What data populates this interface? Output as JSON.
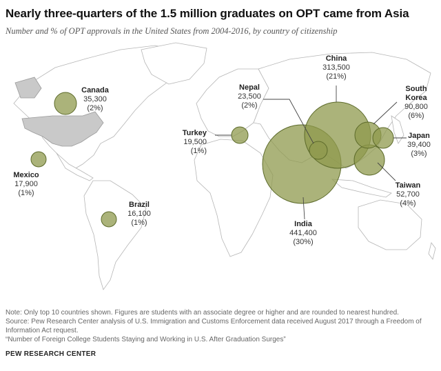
{
  "title": "Nearly three-quarters of the 1.5 million graduates on OPT came from Asia",
  "subtitle": "Number and % of OPT approvals in the United States from 2004-2016, by country of citizenship",
  "colors": {
    "bubble_fill": "#8f9a4e",
    "bubble_stroke": "#5c6a2a",
    "land": "#ffffff",
    "land_stroke": "#b5b5b5",
    "us_fill": "#c9c9c9"
  },
  "countries": [
    {
      "name": "Canada",
      "value": "35,300",
      "pct": "(2%)"
    },
    {
      "name": "Mexico",
      "value": "17,900",
      "pct": "(1%)"
    },
    {
      "name": "Brazil",
      "value": "16,100",
      "pct": "(1%)"
    },
    {
      "name": "Turkey",
      "value": "19,500",
      "pct": "(1%)"
    },
    {
      "name": "Nepal",
      "value": "23,500",
      "pct": "(2%)"
    },
    {
      "name": "China",
      "value": "313,500",
      "pct": "(21%)"
    },
    {
      "name": "South Korea",
      "name_line1": "South",
      "name_line2": "Korea",
      "value": "90,800",
      "pct": "(6%)"
    },
    {
      "name": "Japan",
      "value": "39,400",
      "pct": "(3%)"
    },
    {
      "name": "Taiwan",
      "value": "52,700",
      "pct": "(4%)"
    },
    {
      "name": "India",
      "value": "441,400",
      "pct": "(30%)"
    }
  ],
  "notes": {
    "note": "Note: Only top 10 countries shown. Figures are students with an associate degree or higher and are rounded to nearest hundred.",
    "source": "Source: Pew Research Center analysis of U.S. Immigration and Customs Enforcement data received August 2017 through a Freedom of Information Act request.",
    "report": "“Number of Foreign College Students Staying and Working in U.S. After Graduation Surges”"
  },
  "brand": "PEW RESEARCH CENTER"
}
